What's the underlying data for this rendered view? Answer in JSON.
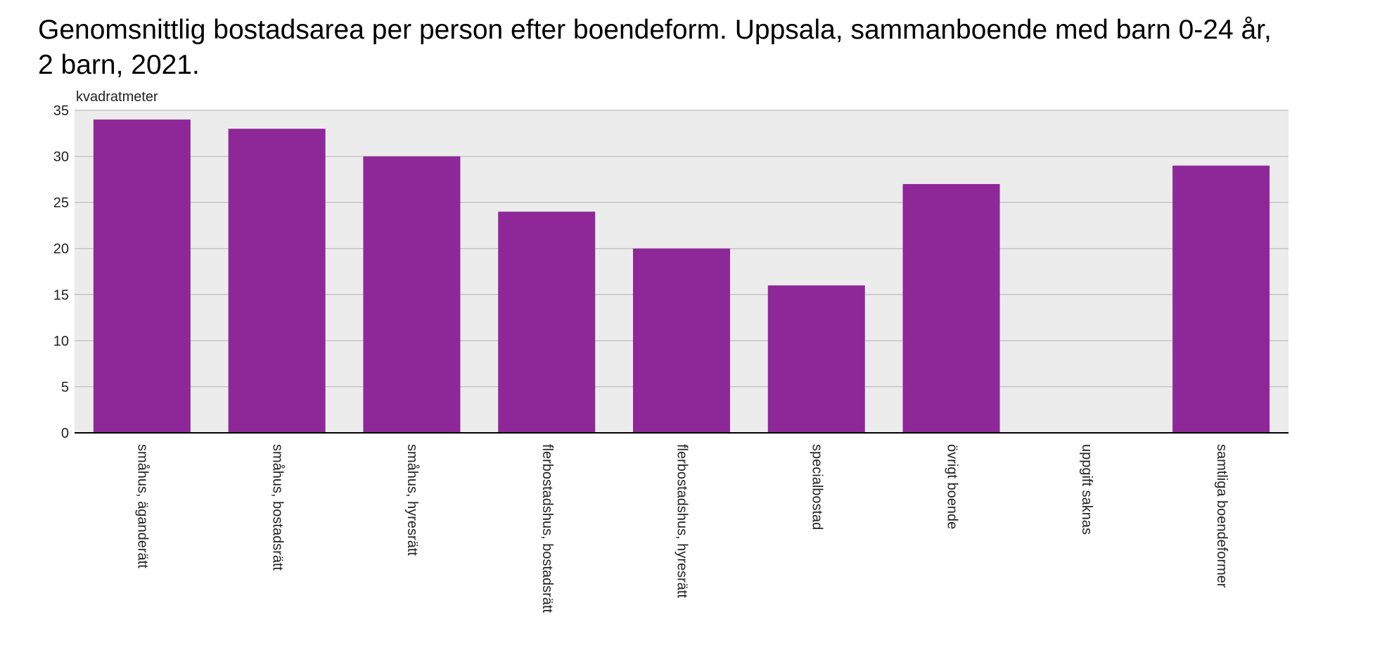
{
  "chart_data": {
    "type": "bar",
    "title": "Genomsnittlig bostadsarea per person efter boendeform. Uppsala, sammanboende med barn 0-24 år, 2 barn, 2021.",
    "ylabel": "kvadratmeter",
    "xlabel": "",
    "ylim": [
      0,
      35
    ],
    "yticks": [
      0,
      5,
      10,
      15,
      20,
      25,
      30,
      35
    ],
    "grid": true,
    "legend": "none",
    "colors": {
      "bar": "#8e2899",
      "plot_background": "#ececec",
      "gridline": "#c4c4c4",
      "axis": "#000000"
    },
    "categories": [
      "småhus, äganderätt",
      "småhus, bostadsrätt",
      "småhus, hyresrätt",
      "flerbostadshus, bostadsrätt",
      "flerbostadshus, hyresrätt",
      "specialbostad",
      "övrigt boende",
      "uppgift saknas",
      "samtliga boendeformer"
    ],
    "values": [
      34,
      33,
      30,
      24,
      20,
      16,
      27,
      null,
      29
    ]
  }
}
